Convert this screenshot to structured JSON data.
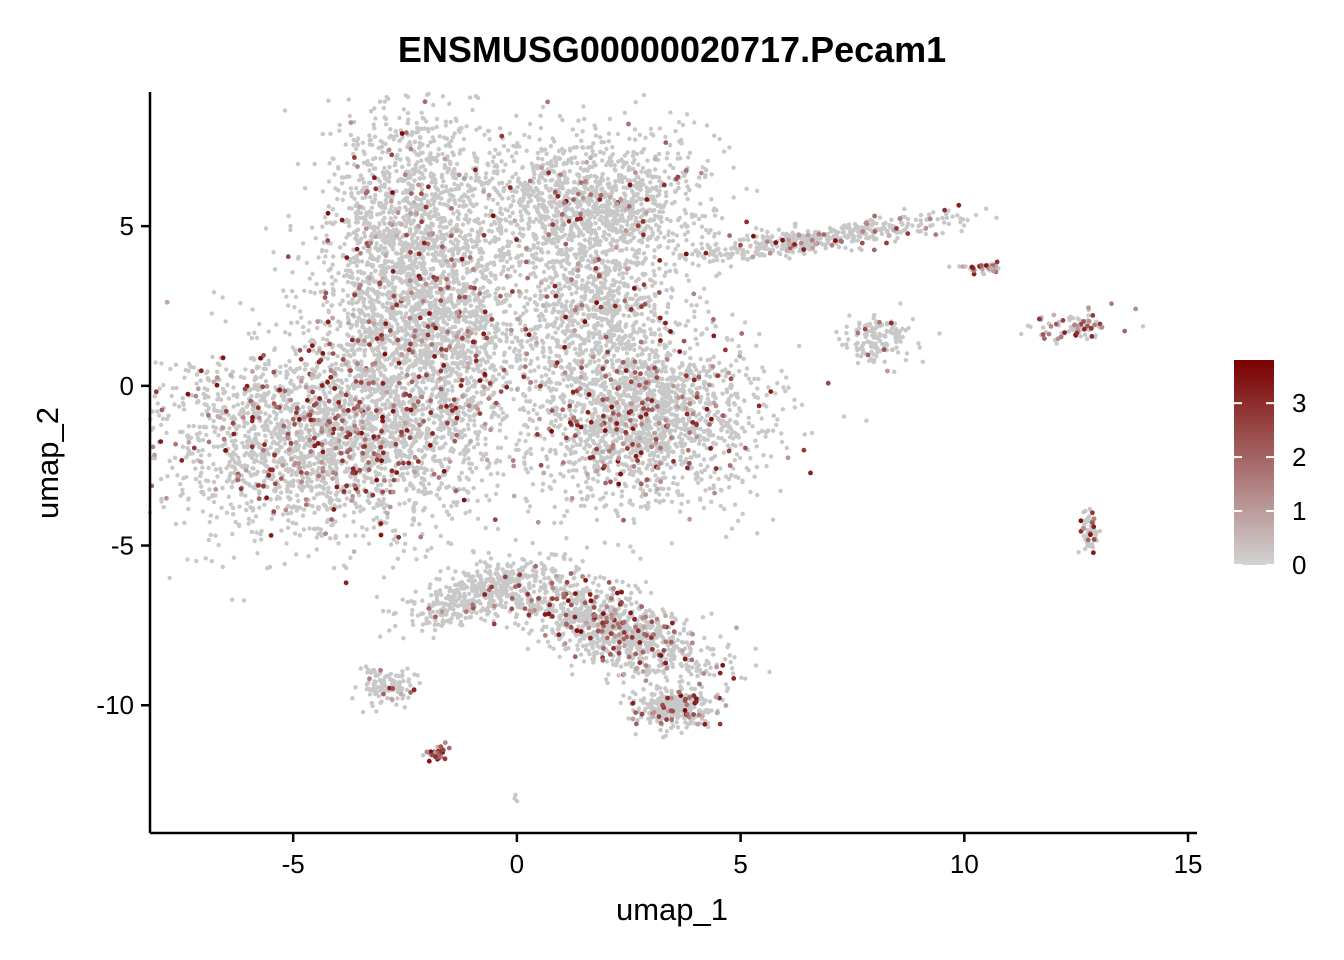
{
  "chart_data": {
    "type": "scatter",
    "title": "ENSMUSG00000020717.Pecam1",
    "xlabel": "umap_1",
    "ylabel": "umap_2",
    "xlim": [
      -8.2,
      15.2
    ],
    "ylim": [
      -14.0,
      9.2
    ],
    "x_ticks": [
      -5,
      0,
      5,
      10,
      15
    ],
    "y_ticks": [
      5,
      0,
      -5,
      -10
    ],
    "x_tick_labels": [
      "-5",
      "0",
      "5",
      "10",
      "15"
    ],
    "y_tick_labels": [
      "5",
      "0",
      "-5",
      "-10"
    ],
    "grid": false,
    "legend_position": "right",
    "colorbar": {
      "min": 0,
      "max": 3.8,
      "ticks": [
        0,
        1,
        2,
        3
      ],
      "tick_labels": [
        "0",
        "1",
        "2",
        "3"
      ],
      "low_color": "#D3D3D3",
      "high_color": "#7A0000"
    },
    "point_color_default": "#C8C8C8",
    "clusters": [
      {
        "name": "upper-left-lobe",
        "cx": -2.4,
        "cy": 4.8,
        "sx": 1.0,
        "sy": 2.0,
        "n": 1400,
        "expr_rate": 0.07
      },
      {
        "name": "left-body",
        "cx": -4.2,
        "cy": -1.6,
        "sx": 1.9,
        "sy": 1.5,
        "n": 2400,
        "expr_rate": 0.13
      },
      {
        "name": "left-center",
        "cx": -2.0,
        "cy": 1.5,
        "sx": 1.2,
        "sy": 1.6,
        "n": 1400,
        "expr_rate": 0.08
      },
      {
        "name": "upper-right-lobe",
        "cx": 1.6,
        "cy": 5.6,
        "sx": 1.3,
        "sy": 1.2,
        "n": 1400,
        "expr_rate": 0.05
      },
      {
        "name": "right-body",
        "cx": 2.9,
        "cy": -1.0,
        "sx": 1.3,
        "sy": 1.3,
        "n": 1700,
        "expr_rate": 0.11
      },
      {
        "name": "right-center",
        "cx": 1.8,
        "cy": 2.2,
        "sx": 0.9,
        "sy": 1.2,
        "n": 700,
        "expr_rate": 0.06
      },
      {
        "name": "lower-right-arm",
        "cx": 2.0,
        "cy": -7.5,
        "sx": 1.4,
        "sy": 0.55,
        "n": 1100,
        "expr_rate": 0.12,
        "rot": -0.55
      },
      {
        "name": "lower-left-arm",
        "cx": -0.9,
        "cy": -6.5,
        "sx": 0.9,
        "sy": 0.35,
        "n": 400,
        "expr_rate": 0.04,
        "rot": 0.5
      },
      {
        "name": "arm-tip",
        "cx": 3.5,
        "cy": -10.1,
        "sx": 0.45,
        "sy": 0.3,
        "n": 300,
        "expr_rate": 0.15
      },
      {
        "name": "streak",
        "cx": 6.7,
        "cy": 4.6,
        "sx": 1.5,
        "sy": 0.2,
        "n": 450,
        "expr_rate": 0.12,
        "rot": 0.2
      },
      {
        "name": "small-cluster-a",
        "cx": -2.9,
        "cy": -9.4,
        "sx": 0.3,
        "sy": 0.3,
        "n": 110,
        "expr_rate": 0.12
      },
      {
        "name": "small-cluster-b",
        "cx": -1.75,
        "cy": -11.5,
        "sx": 0.12,
        "sy": 0.15,
        "n": 30,
        "expr_rate": 0.95
      },
      {
        "name": "small-cluster-c",
        "cx": 8.1,
        "cy": 1.5,
        "sx": 0.4,
        "sy": 0.4,
        "n": 140,
        "expr_rate": 0.04
      },
      {
        "name": "small-cluster-d",
        "cx": 10.4,
        "cy": 3.7,
        "sx": 0.25,
        "sy": 0.12,
        "n": 35,
        "expr_rate": 0.35
      },
      {
        "name": "small-cluster-e",
        "cx": 12.5,
        "cy": 1.8,
        "sx": 0.45,
        "sy": 0.25,
        "n": 80,
        "expr_rate": 0.35
      },
      {
        "name": "small-cluster-f",
        "cx": 12.8,
        "cy": -4.6,
        "sx": 0.12,
        "sy": 0.35,
        "n": 60,
        "expr_rate": 0.3
      },
      {
        "name": "outlier",
        "cx": 0.0,
        "cy": -12.9,
        "sx": 0.05,
        "sy": 0.05,
        "n": 3,
        "expr_rate": 0.0
      }
    ]
  }
}
